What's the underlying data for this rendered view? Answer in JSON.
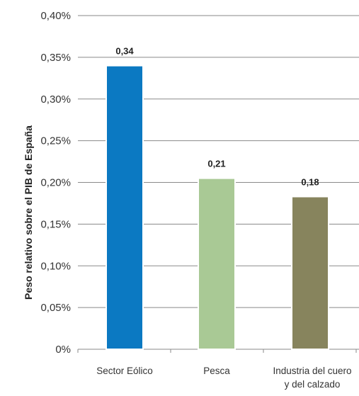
{
  "chart_data": {
    "type": "bar",
    "title": "",
    "xlabel": "",
    "ylabel": "Peso relativo sobre el PIB de España",
    "ylim": [
      0,
      0.4
    ],
    "grid": true,
    "legend": "none",
    "y_ticks": [
      "0%",
      "0,05%",
      "0,10%",
      "0,15%",
      "0,20%",
      "0,25%",
      "0,30%",
      "0,35%",
      "0,40%"
    ],
    "categories": [
      [
        "Sector Eólico"
      ],
      [
        "Pesca"
      ],
      [
        "Industria del cuero",
        "y del calzado"
      ]
    ],
    "values": [
      0.34,
      0.205,
      0.183
    ],
    "data_labels": [
      "0,34",
      "0,21",
      "0,18"
    ],
    "colors": [
      "#0b79c2",
      "#a9c995",
      "#87845d"
    ]
  }
}
